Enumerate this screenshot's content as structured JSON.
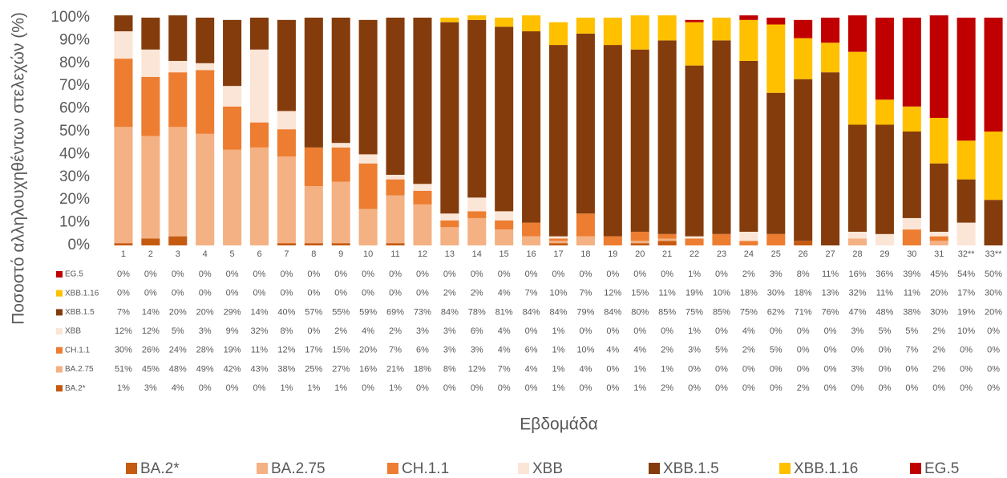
{
  "chart_data": {
    "type": "stacked_bar",
    "y_label": "Ποσοστό αλληλουχηθέντων στελεχών (%)",
    "x_label": "Εβδομάδα",
    "categories": [
      "1",
      "2",
      "3",
      "4",
      "5",
      "6",
      "7",
      "8",
      "9",
      "10",
      "11",
      "12",
      "13",
      "14",
      "15",
      "16",
      "17",
      "18",
      "19",
      "20",
      "21",
      "22",
      "23",
      "24",
      "25",
      "26",
      "27",
      "28",
      "29",
      "30",
      "31",
      "32**",
      "33**"
    ],
    "ylim": [
      0,
      100
    ],
    "yticks": [
      {
        "value": 0,
        "label": "0%"
      },
      {
        "value": 10,
        "label": "10%"
      },
      {
        "value": 20,
        "label": "20%"
      },
      {
        "value": 30,
        "label": "30%"
      },
      {
        "value": 40,
        "label": "40%"
      },
      {
        "value": 50,
        "label": "50%"
      },
      {
        "value": 60,
        "label": "60%"
      },
      {
        "value": 70,
        "label": "70%"
      },
      {
        "value": 80,
        "label": "80%"
      },
      {
        "value": 90,
        "label": "90%"
      },
      {
        "value": 100,
        "label": "100%"
      }
    ],
    "series": [
      {
        "name": "BA.2*",
        "color": "#c55a11",
        "values": [
          1,
          3,
          4,
          0,
          0,
          0,
          1,
          1,
          1,
          0,
          1,
          0,
          0,
          0,
          0,
          0,
          1,
          0,
          0,
          1,
          2,
          0,
          0,
          0,
          0,
          2,
          0,
          0,
          0,
          0,
          0,
          0,
          0
        ],
        "value_labels": [
          "1%",
          "3%",
          "4%",
          "0%",
          "0%",
          "0%",
          "1%",
          "1%",
          "1%",
          "0%",
          "1%",
          "0%",
          "0%",
          "0%",
          "0%",
          "0%",
          "1%",
          "0%",
          "0%",
          "1%",
          "2%",
          "0%",
          "0%",
          "0%",
          "0%",
          "2%",
          "0%",
          "0%",
          "0%",
          "0%",
          "0%",
          "0%",
          "0%"
        ]
      },
      {
        "name": "BA.2.75",
        "color": "#f4b183",
        "values": [
          51,
          45,
          48,
          49,
          42,
          43,
          38,
          25,
          27,
          16,
          21,
          18,
          8,
          12,
          7,
          4,
          1,
          4,
          0,
          1,
          1,
          0,
          0,
          0,
          0,
          0,
          0,
          3,
          0,
          0,
          2,
          0,
          0
        ],
        "value_labels": [
          "51%",
          "45%",
          "48%",
          "49%",
          "42%",
          "43%",
          "38%",
          "25%",
          "27%",
          "16%",
          "21%",
          "18%",
          "8%",
          "12%",
          "7%",
          "4%",
          "1%",
          "4%",
          "0%",
          "1%",
          "1%",
          "0%",
          "0%",
          "0%",
          "0%",
          "0%",
          "0%",
          "3%",
          "0%",
          "0%",
          "2%",
          "0%",
          "0%"
        ]
      },
      {
        "name": "CH.1.1",
        "color": "#ed7d31",
        "values": [
          30,
          26,
          24,
          28,
          19,
          11,
          12,
          17,
          15,
          20,
          7,
          6,
          3,
          3,
          4,
          6,
          1,
          10,
          4,
          4,
          2,
          3,
          5,
          2,
          5,
          0,
          0,
          0,
          0,
          7,
          2,
          0,
          0
        ],
        "value_labels": [
          "30%",
          "26%",
          "24%",
          "28%",
          "19%",
          "11%",
          "12%",
          "17%",
          "15%",
          "20%",
          "7%",
          "6%",
          "3%",
          "3%",
          "4%",
          "6%",
          "1%",
          "10%",
          "4%",
          "4%",
          "2%",
          "3%",
          "5%",
          "2%",
          "5%",
          "0%",
          "0%",
          "0%",
          "0%",
          "7%",
          "2%",
          "0%",
          "0%"
        ]
      },
      {
        "name": "XBB",
        "color": "#fbe5d6",
        "values": [
          12,
          12,
          5,
          3,
          9,
          32,
          8,
          0,
          2,
          4,
          2,
          3,
          3,
          6,
          4,
          0,
          1,
          0,
          0,
          0,
          0,
          1,
          0,
          4,
          0,
          0,
          0,
          3,
          5,
          5,
          2,
          10,
          0
        ],
        "value_labels": [
          "12%",
          "12%",
          "5%",
          "3%",
          "9%",
          "32%",
          "8%",
          "0%",
          "2%",
          "4%",
          "2%",
          "3%",
          "3%",
          "6%",
          "4%",
          "0%",
          "1%",
          "0%",
          "0%",
          "0%",
          "0%",
          "1%",
          "0%",
          "4%",
          "0%",
          "0%",
          "0%",
          "3%",
          "5%",
          "5%",
          "2%",
          "10%",
          "0%"
        ]
      },
      {
        "name": "XBB.1.5",
        "color": "#843c0c",
        "values": [
          7,
          14,
          20,
          20,
          29,
          14,
          40,
          57,
          55,
          59,
          69,
          73,
          84,
          78,
          81,
          84,
          84,
          79,
          84,
          80,
          85,
          75,
          85,
          75,
          62,
          71,
          76,
          47,
          48,
          38,
          30,
          19,
          20
        ],
        "value_labels": [
          "7%",
          "14%",
          "20%",
          "20%",
          "29%",
          "14%",
          "40%",
          "57%",
          "55%",
          "59%",
          "69%",
          "73%",
          "84%",
          "78%",
          "81%",
          "84%",
          "84%",
          "79%",
          "84%",
          "80%",
          "85%",
          "75%",
          "85%",
          "75%",
          "62%",
          "71%",
          "76%",
          "47%",
          "48%",
          "38%",
          "30%",
          "19%",
          "20%"
        ]
      },
      {
        "name": "XBB.1.16",
        "color": "#ffc000",
        "values": [
          0,
          0,
          0,
          0,
          0,
          0,
          0,
          0,
          0,
          0,
          0,
          0,
          2,
          2,
          4,
          7,
          10,
          7,
          12,
          15,
          11,
          19,
          10,
          18,
          30,
          18,
          13,
          32,
          11,
          11,
          20,
          17,
          30
        ],
        "value_labels": [
          "0%",
          "0%",
          "0%",
          "0%",
          "0%",
          "0%",
          "0%",
          "0%",
          "0%",
          "0%",
          "0%",
          "0%",
          "2%",
          "2%",
          "4%",
          "7%",
          "10%",
          "7%",
          "12%",
          "15%",
          "11%",
          "19%",
          "10%",
          "18%",
          "30%",
          "18%",
          "13%",
          "32%",
          "11%",
          "11%",
          "20%",
          "17%",
          "30%"
        ]
      },
      {
        "name": "EG.5",
        "color": "#c00000",
        "values": [
          0,
          0,
          0,
          0,
          0,
          0,
          0,
          0,
          0,
          0,
          0,
          0,
          0,
          0,
          0,
          0,
          0,
          0,
          0,
          0,
          0,
          1,
          0,
          2,
          3,
          8,
          11,
          16,
          36,
          39,
          45,
          54,
          50
        ],
        "value_labels": [
          "0%",
          "0%",
          "0%",
          "0%",
          "0%",
          "0%",
          "0%",
          "0%",
          "0%",
          "0%",
          "0%",
          "0%",
          "0%",
          "0%",
          "0%",
          "0%",
          "0%",
          "0%",
          "0%",
          "0%",
          "0%",
          "1%",
          "0%",
          "2%",
          "3%",
          "8%",
          "11%",
          "16%",
          "36%",
          "39%",
          "45%",
          "54%",
          "50%"
        ]
      }
    ]
  }
}
